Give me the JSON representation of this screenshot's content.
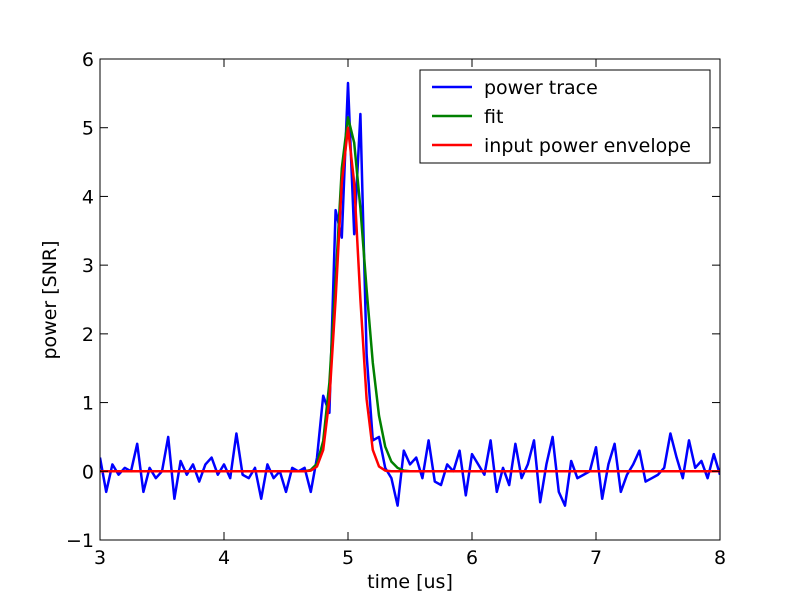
{
  "chart_data": {
    "type": "line",
    "xlabel": "time [us]",
    "ylabel": "power [SNR]",
    "xlim": [
      3,
      8
    ],
    "ylim": [
      -1,
      6
    ],
    "xticks": [
      3,
      4,
      5,
      6,
      7,
      8
    ],
    "yticks": [
      {
        "value": -1,
        "label": "−1"
      },
      0,
      1,
      2,
      3,
      4,
      5,
      6
    ],
    "legend": "upper right",
    "x": [
      3.0,
      3.05,
      3.1,
      3.15,
      3.2,
      3.25,
      3.3,
      3.35,
      3.4,
      3.45,
      3.5,
      3.55,
      3.6,
      3.65,
      3.7,
      3.75,
      3.8,
      3.85,
      3.9,
      3.95,
      4.0,
      4.05,
      4.1,
      4.15,
      4.2,
      4.25,
      4.3,
      4.35,
      4.4,
      4.45,
      4.5,
      4.55,
      4.6,
      4.65,
      4.7,
      4.75,
      4.8,
      4.85,
      4.9,
      4.95,
      5.0,
      5.05,
      5.1,
      5.15,
      5.2,
      5.25,
      5.3,
      5.35,
      5.4,
      5.45,
      5.5,
      5.55,
      5.6,
      5.65,
      5.7,
      5.75,
      5.8,
      5.85,
      5.9,
      5.95,
      6.0,
      6.05,
      6.1,
      6.15,
      6.2,
      6.25,
      6.3,
      6.35,
      6.4,
      6.45,
      6.5,
      6.55,
      6.6,
      6.65,
      6.7,
      6.75,
      6.8,
      6.85,
      6.9,
      6.95,
      7.0,
      7.05,
      7.1,
      7.15,
      7.2,
      7.25,
      7.3,
      7.35,
      7.4,
      7.45,
      7.5,
      7.55,
      7.6,
      7.65,
      7.7,
      7.75,
      7.8,
      7.85,
      7.9,
      7.95,
      8.0
    ],
    "series": [
      {
        "name": "power trace",
        "color": "#0000ff",
        "values": [
          0.2,
          -0.3,
          0.1,
          -0.05,
          0.05,
          0.0,
          0.4,
          -0.3,
          0.05,
          -0.1,
          0.0,
          0.5,
          -0.4,
          0.15,
          -0.05,
          0.1,
          -0.15,
          0.1,
          0.2,
          -0.05,
          0.1,
          -0.1,
          0.55,
          -0.05,
          -0.1,
          0.05,
          -0.4,
          0.1,
          -0.1,
          0.0,
          -0.3,
          0.05,
          0.0,
          0.05,
          -0.3,
          0.2,
          1.1,
          0.85,
          3.8,
          3.4,
          5.65,
          3.45,
          5.2,
          1.7,
          0.45,
          0.5,
          0.05,
          -0.1,
          -0.5,
          0.3,
          0.1,
          0.2,
          -0.1,
          0.45,
          -0.15,
          -0.2,
          0.1,
          0.0,
          0.3,
          -0.35,
          0.25,
          0.1,
          -0.05,
          0.45,
          -0.3,
          0.05,
          -0.2,
          0.4,
          -0.1,
          0.1,
          0.45,
          -0.45,
          0.1,
          0.5,
          -0.3,
          -0.5,
          0.15,
          -0.1,
          -0.05,
          0.0,
          0.35,
          -0.4,
          0.1,
          0.4,
          -0.3,
          -0.05,
          0.1,
          0.3,
          -0.15,
          -0.1,
          -0.05,
          0.05,
          0.55,
          0.2,
          -0.1,
          0.45,
          0.05,
          0.15,
          -0.1,
          0.25,
          -0.05
        ]
      },
      {
        "name": "fit",
        "color": "#008000",
        "values": [
          0,
          0,
          0,
          0,
          0,
          0,
          0,
          0,
          0,
          0,
          0,
          0,
          0,
          0,
          0,
          0,
          0,
          0,
          0,
          0,
          0,
          0,
          0,
          0,
          0,
          0,
          0,
          0,
          0,
          0,
          0,
          0,
          0,
          0,
          0.02,
          0.11,
          0.44,
          1.29,
          2.78,
          4.41,
          5.15,
          4.78,
          3.83,
          2.65,
          1.58,
          0.81,
          0.36,
          0.14,
          0.05,
          0.01,
          0,
          0,
          0,
          0,
          0,
          0,
          0,
          0,
          0,
          0,
          0,
          0,
          0,
          0,
          0,
          0,
          0,
          0,
          0,
          0,
          0,
          0,
          0,
          0,
          0,
          0,
          0,
          0,
          0,
          0,
          0,
          0,
          0,
          0,
          0,
          0,
          0,
          0,
          0,
          0,
          0,
          0,
          0,
          0,
          0,
          0,
          0,
          0,
          0,
          0,
          0
        ]
      },
      {
        "name": "input power envelope",
        "color": "#ff0000",
        "values": [
          0,
          0,
          0,
          0,
          0,
          0,
          0,
          0,
          0,
          0,
          0,
          0,
          0,
          0,
          0,
          0,
          0,
          0,
          0,
          0,
          0,
          0,
          0,
          0,
          0,
          0,
          0,
          0,
          0,
          0,
          0,
          0,
          0,
          0,
          0.01,
          0.07,
          0.31,
          1.05,
          2.5,
          4.2,
          5.0,
          4.2,
          2.5,
          1.05,
          0.31,
          0.07,
          0.01,
          0,
          0,
          0,
          0,
          0,
          0,
          0,
          0,
          0,
          0,
          0,
          0,
          0,
          0,
          0,
          0,
          0,
          0,
          0,
          0,
          0,
          0,
          0,
          0,
          0,
          0,
          0,
          0,
          0,
          0,
          0,
          0,
          0,
          0,
          0,
          0,
          0,
          0,
          0,
          0,
          0,
          0,
          0,
          0,
          0,
          0,
          0,
          0,
          0,
          0,
          0,
          0,
          0,
          0
        ]
      }
    ]
  }
}
